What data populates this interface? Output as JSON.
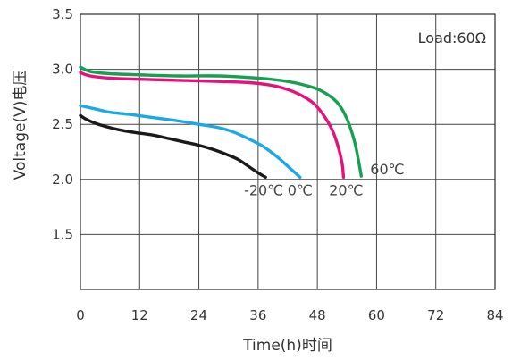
{
  "chart_data": {
    "type": "line",
    "title": "",
    "xlabel": "Time(h)时间",
    "ylabel": "Voltage(V)电压",
    "xlim": [
      0,
      84
    ],
    "ylim": [
      1.0,
      3.5
    ],
    "xticks": [
      0,
      12,
      24,
      36,
      48,
      60,
      72,
      84
    ],
    "yticks": [
      {
        "value": 1.5,
        "label": "1.5"
      },
      {
        "value": 2.0,
        "label": "2.0"
      },
      {
        "value": 2.5,
        "label": "2.5"
      },
      {
        "value": 3.0,
        "label": "3.0"
      },
      {
        "value": 3.5,
        "label": "3.5"
      }
    ],
    "grid": true,
    "annotation": "Load:60Ω",
    "series": [
      {
        "name": "-20℃",
        "color": "#1a1a1a",
        "x": [
          0,
          1,
          3,
          6,
          9,
          12,
          15,
          18,
          21,
          24,
          27,
          30,
          32,
          34,
          36,
          37.5
        ],
        "y": [
          2.58,
          2.55,
          2.51,
          2.47,
          2.44,
          2.42,
          2.4,
          2.37,
          2.34,
          2.31,
          2.27,
          2.22,
          2.18,
          2.12,
          2.06,
          2.02
        ]
      },
      {
        "name": "0℃",
        "color": "#1ca9e2",
        "x": [
          0,
          3,
          6,
          10,
          15,
          20,
          24,
          28,
          31,
          34,
          37,
          40,
          42,
          43.5,
          44.5
        ],
        "y": [
          2.67,
          2.64,
          2.61,
          2.59,
          2.56,
          2.53,
          2.5,
          2.47,
          2.43,
          2.37,
          2.3,
          2.2,
          2.12,
          2.06,
          2.02
        ]
      },
      {
        "name": "20℃",
        "color": "#e4137a",
        "x": [
          0,
          2,
          6,
          12,
          20,
          28,
          34,
          38,
          41,
          44,
          47,
          49,
          51,
          52.2,
          53,
          53.3
        ],
        "y": [
          2.97,
          2.94,
          2.92,
          2.91,
          2.9,
          2.89,
          2.88,
          2.86,
          2.83,
          2.78,
          2.7,
          2.6,
          2.45,
          2.3,
          2.15,
          2.02
        ]
      },
      {
        "name": "60℃",
        "color": "#15a052",
        "x": [
          0,
          2,
          6,
          12,
          20,
          28,
          36,
          42,
          46,
          49,
          52,
          54,
          55.5,
          56.3,
          56.9
        ],
        "y": [
          3.02,
          2.98,
          2.96,
          2.95,
          2.94,
          2.94,
          2.92,
          2.89,
          2.85,
          2.8,
          2.7,
          2.55,
          2.35,
          2.18,
          2.03
        ]
      }
    ]
  }
}
